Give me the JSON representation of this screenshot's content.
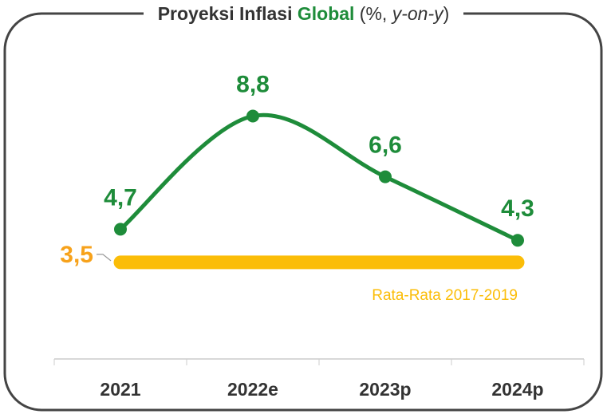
{
  "chart_data": {
    "type": "line",
    "title": [
      "Proyeksi Inflasi ",
      "Global",
      " (%, ",
      "y-on-y",
      ")"
    ],
    "categories": [
      "2021",
      "2022e",
      "2023p",
      "2024p"
    ],
    "series": [
      {
        "color": "#1e8c3a",
        "values": [
          4.7,
          8.8,
          6.6,
          4.3
        ],
        "value_labels": [
          "4,7",
          "8,8",
          "6,6",
          "4,3"
        ]
      }
    ],
    "reference_line": {
      "value": 3.5,
      "label": "3,5",
      "text": "Rata-Rata 2017-2019",
      "color": "#fbbd08",
      "label_color": "#f7a21b"
    },
    "ylim": [
      0,
      10
    ]
  }
}
